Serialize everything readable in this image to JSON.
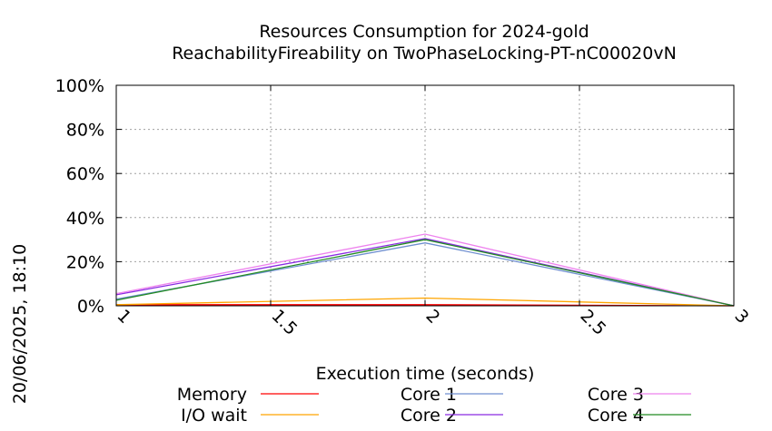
{
  "chart_data": {
    "type": "line",
    "title": "Resources Consumption for 2024-gold",
    "subtitle": "ReachabilityFireability on TwoPhaseLocking-PT-nC00020vN",
    "xlabel": "Execution time (seconds)",
    "ylabel": "",
    "side_label": "20/06/2025, 18:10",
    "xlim": [
      1,
      3
    ],
    "ylim": [
      0,
      100
    ],
    "x_ticks": [
      1,
      1.5,
      2,
      2.5,
      3
    ],
    "x_tick_labels": [
      "1",
      "1.5",
      "2",
      "2.5",
      "3"
    ],
    "y_ticks": [
      0,
      20,
      40,
      60,
      80,
      100
    ],
    "y_tick_labels": [
      "0%",
      "20%",
      "40%",
      "60%",
      "80%",
      "100%"
    ],
    "grid": true,
    "legend_position": "bottom",
    "x": [
      1,
      2,
      3
    ],
    "series": [
      {
        "name": "Memory",
        "color": "#ff0000",
        "values": [
          0.5,
          0.5,
          0
        ]
      },
      {
        "name": "I/O wait",
        "color": "#ffa500",
        "values": [
          0.5,
          3.5,
          0
        ]
      },
      {
        "name": "Core 1",
        "color": "#6f8fd0",
        "values": [
          3,
          28.5,
          0
        ]
      },
      {
        "name": "Core 2",
        "color": "#8a2be2",
        "values": [
          5,
          30.5,
          0
        ]
      },
      {
        "name": "Core 3",
        "color": "#ee82ee",
        "values": [
          5.5,
          32.5,
          0
        ]
      },
      {
        "name": "Core 4",
        "color": "#228b22",
        "values": [
          2.5,
          30,
          0
        ]
      }
    ]
  }
}
